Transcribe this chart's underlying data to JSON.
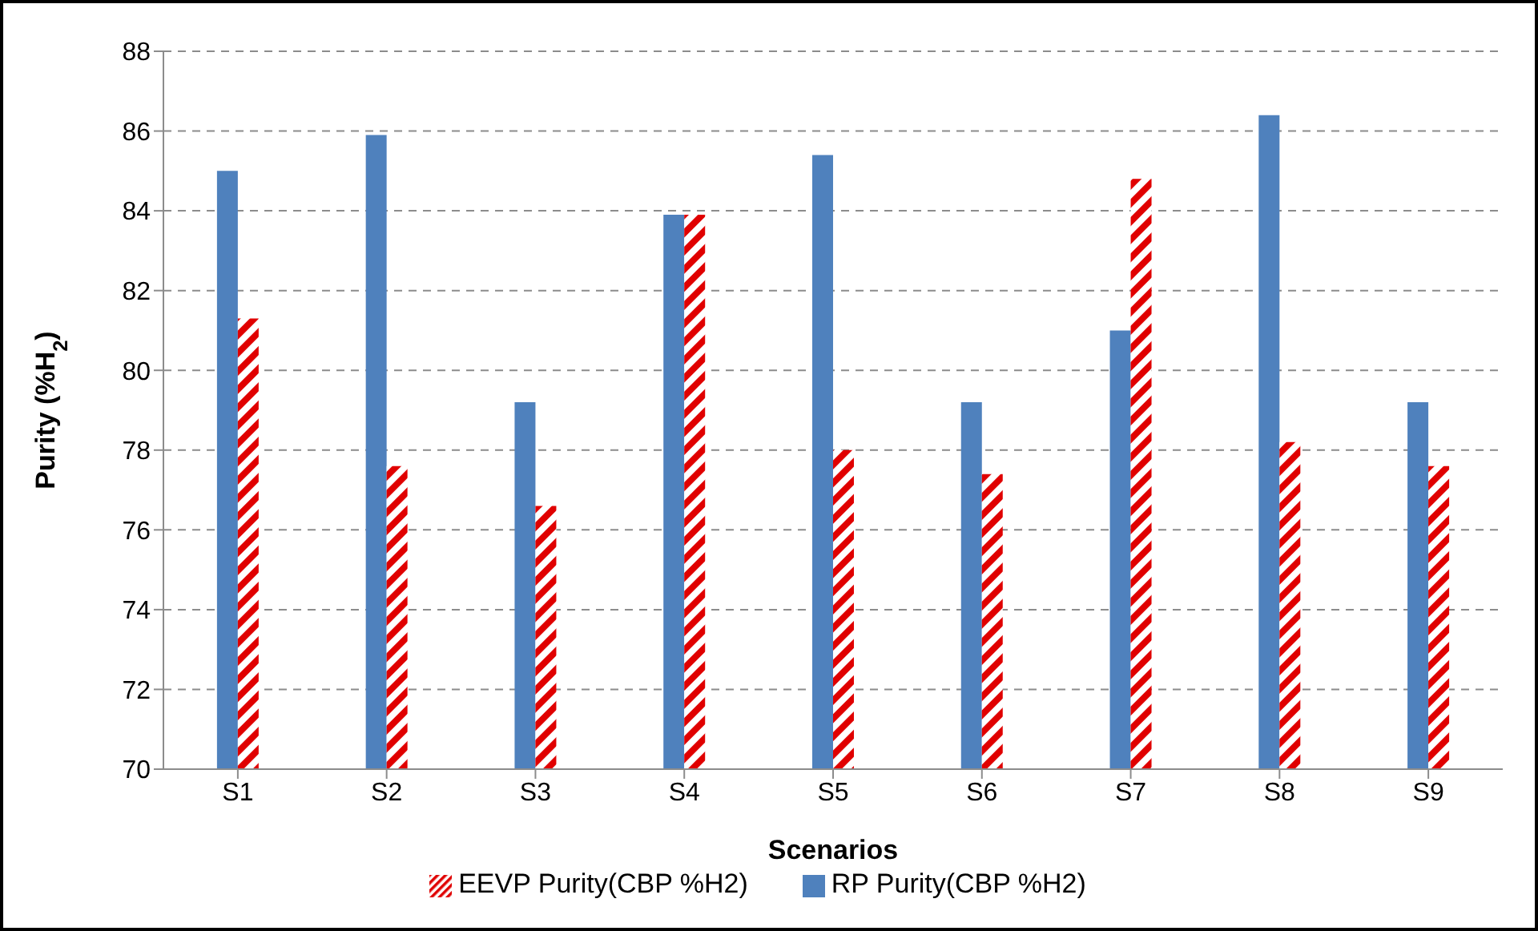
{
  "chart_data": {
    "type": "bar",
    "xlabel": "Scenarios",
    "ylabel": "Purity (%H$_{2}$)",
    "categories": [
      "S1",
      "S2",
      "S3",
      "S4",
      "S5",
      "S6",
      "S7",
      "S8",
      "S9"
    ],
    "series": [
      {
        "name": "RP Purity(CBP %H2)",
        "color": "#4f81bd",
        "values": [
          85.0,
          85.9,
          79.2,
          83.9,
          85.4,
          79.2,
          81.0,
          86.4,
          79.2
        ]
      },
      {
        "name": "EEVP Purity(CBP %H2)",
        "color": "#e00000",
        "values": [
          81.3,
          77.6,
          76.6,
          83.9,
          78.0,
          77.4,
          84.8,
          78.2,
          77.6
        ]
      }
    ],
    "ylim": [
      70,
      88
    ],
    "yticks": [
      70,
      72,
      74,
      76,
      78,
      80,
      82,
      84,
      86,
      88
    ],
    "grid": "y",
    "legend": "bottom"
  }
}
